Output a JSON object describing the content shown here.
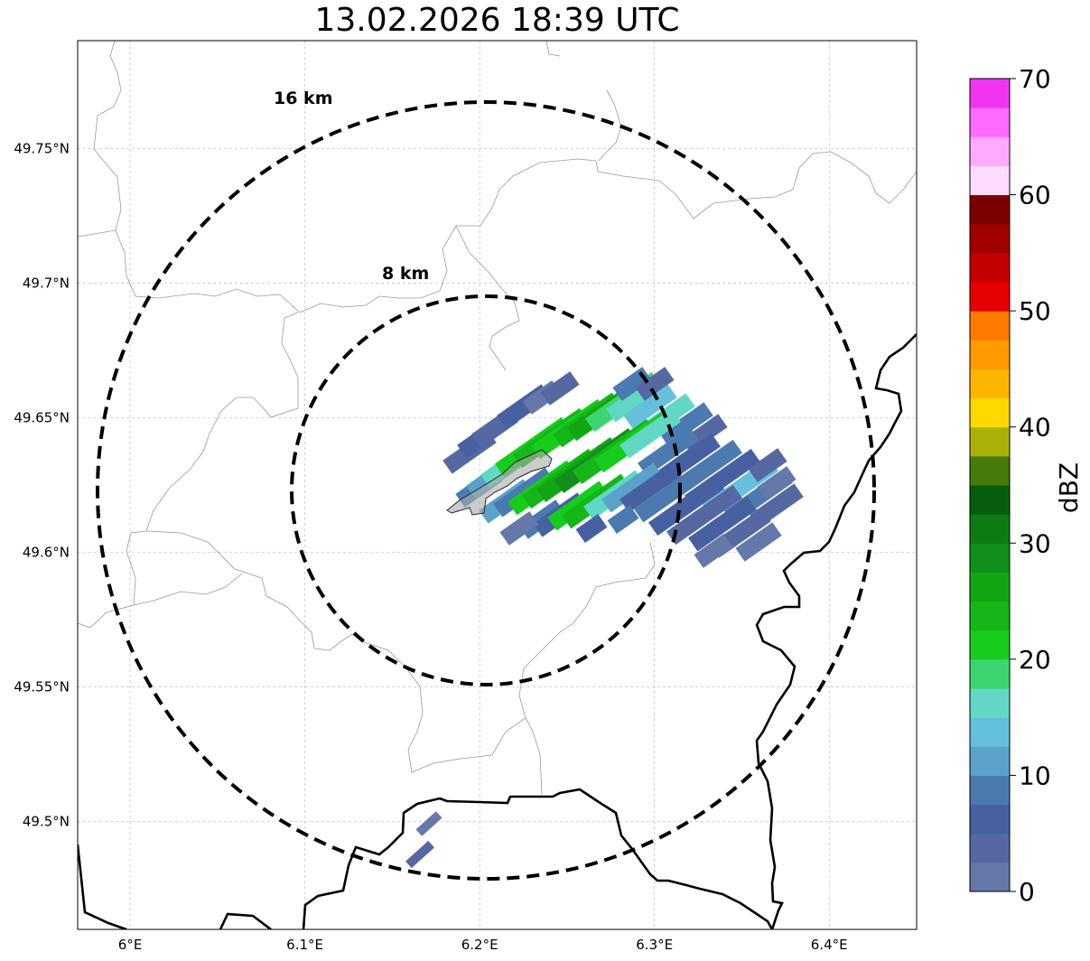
{
  "title": "13.02.2026 18:39 UTC",
  "map": {
    "lon_range": [
      5.97,
      6.45
    ],
    "lat_range": [
      49.46,
      49.79
    ],
    "lon_ticks": [
      6.0,
      6.1,
      6.2,
      6.3,
      6.4
    ],
    "lon_tick_labels": [
      "6°E",
      "6.1°E",
      "6.2°E",
      "6.3°E",
      "6.4°E"
    ],
    "lat_ticks": [
      49.5,
      49.55,
      49.6,
      49.65,
      49.7,
      49.75
    ],
    "lat_tick_labels": [
      "49.5°N",
      "49.55°N",
      "49.6°N",
      "49.65°N",
      "49.7°N",
      "49.75°N"
    ],
    "grid": true,
    "colors": {
      "frame": "#000000",
      "grid": "#bfbfbf",
      "boundary": "#999999",
      "border": "#000000"
    }
  },
  "range_rings": [
    {
      "label": "16 km",
      "radius_km": 16
    },
    {
      "label": "8 km",
      "radius_km": 8
    }
  ],
  "radar_center": {
    "lon": 6.2,
    "lat": 49.623
  },
  "colorbar": {
    "label": "dBZ",
    "min": 0,
    "max": 70,
    "tick_values": [
      0,
      10,
      20,
      30,
      40,
      50,
      60,
      70
    ],
    "tick_labels": [
      "0",
      "10",
      "20",
      "30",
      "40",
      "50",
      "60",
      "70"
    ],
    "colors": [
      "#6478aa",
      "#5668a2",
      "#4660a2",
      "#4a7ab0",
      "#5aa2ca",
      "#65c0dc",
      "#60d8c4",
      "#3cd670",
      "#16cc1c",
      "#14b618",
      "#12a614",
      "#10901a",
      "#0c7c12",
      "#065e0c",
      "#467a0a",
      "#aab20a",
      "#ffd800",
      "#ffb400",
      "#ff9a00",
      "#ff7a00",
      "#e60000",
      "#c40000",
      "#a00000",
      "#7a0000",
      "#ffdcff",
      "#ffaaff",
      "#ff6aff",
      "#f034f0"
    ]
  }
}
